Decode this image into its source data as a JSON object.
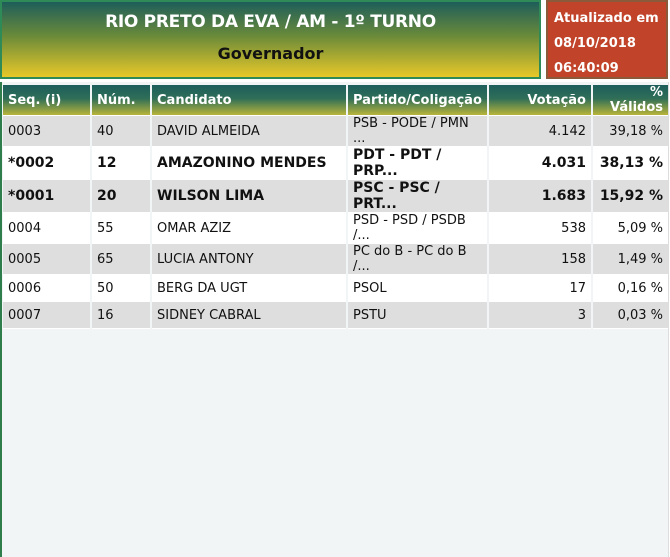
{
  "header": {
    "title": "RIO PRETO DA EVA / AM - 1º TURNO",
    "subtitle": "Governador"
  },
  "updated": {
    "label": "Atualizado em",
    "date": "08/10/2018",
    "time": "06:40:09"
  },
  "table": {
    "columns": [
      "Seq.   (i)",
      "Núm.",
      "Candidato",
      "Partido/Coligação",
      "Votação",
      "% Válidos"
    ],
    "rows": [
      {
        "seq": "0003",
        "num": "40",
        "name": "DAVID ALMEIDA",
        "party": "PSB - PODE / PMN ...",
        "votes": "4.142",
        "pct": "39,18 %",
        "bold": false
      },
      {
        "seq": "*0002",
        "num": "12",
        "name": "AMAZONINO MENDES",
        "party": "PDT - PDT / PRP...",
        "votes": "4.031",
        "pct": "38,13 %",
        "bold": true
      },
      {
        "seq": "*0001",
        "num": "20",
        "name": "WILSON LIMA",
        "party": "PSC - PSC / PRT...",
        "votes": "1.683",
        "pct": "15,92 %",
        "bold": true
      },
      {
        "seq": "0004",
        "num": "55",
        "name": "OMAR AZIZ",
        "party": "PSD - PSD / PSDB /...",
        "votes": "538",
        "pct": "5,09 %",
        "bold": false
      },
      {
        "seq": "0005",
        "num": "65",
        "name": "LUCIA ANTONY",
        "party": "PC do B - PC do B /...",
        "votes": "158",
        "pct": "1,49 %",
        "bold": false
      },
      {
        "seq": "0006",
        "num": "50",
        "name": "BERG DA UGT",
        "party": "PSOL",
        "votes": "17",
        "pct": "0,16 %",
        "bold": false
      },
      {
        "seq": "0007",
        "num": "16",
        "name": "SIDNEY CABRAL",
        "party": "PSTU",
        "votes": "3",
        "pct": "0,03 %",
        "bold": false
      }
    ]
  }
}
